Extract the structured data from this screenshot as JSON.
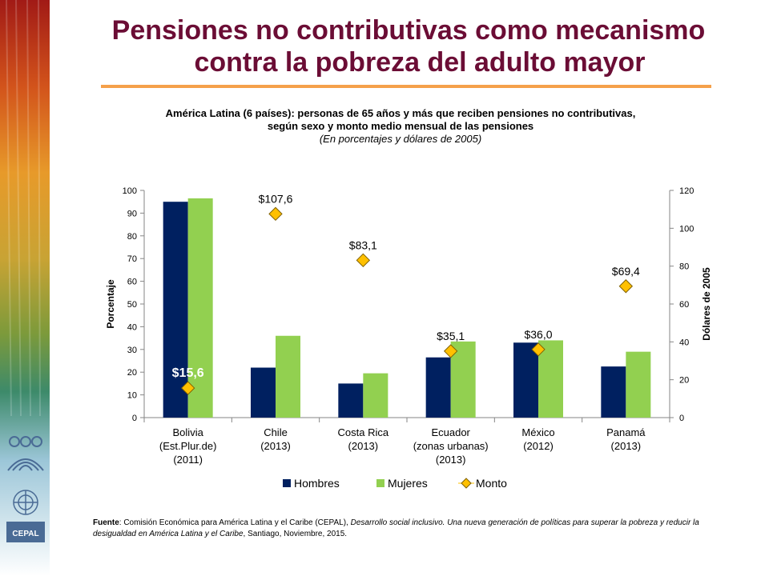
{
  "title_line1": "Pensiones no contributivas como mecanismo",
  "title_line2": "contra la pobreza del adulto mayor",
  "subtitle_line1": "América Latina (6 países): personas de 65 años y más que reciben pensiones no contributivas,",
  "subtitle_line2": "según sexo y monto medio mensual de las pensiones",
  "subtitle_line3": "(En porcentajes y dólares de 2005)",
  "source": {
    "label": "Fuente",
    "text_a": ": Comisión Económica para América Latina y el Caribe (CEPAL), ",
    "italic": "Desarrollo social inclusivo. Una nueva generación de políticas para superar la pobreza y reducir la desigualdad en América Latina y el Caribe",
    "text_b": ", Santiago, Noviembre, 2015."
  },
  "colors": {
    "hombres": "#002060",
    "mujeres": "#92d050",
    "monto": "#ffc000",
    "title": "#6b0d35",
    "rule": "#f5a04a"
  },
  "chart_data": {
    "type": "bar",
    "categories": [
      [
        "Bolivia",
        "(Est.Plur.de)",
        "(2011)"
      ],
      [
        "Chile",
        "(2013)"
      ],
      [
        "Costa Rica",
        "(2013)"
      ],
      [
        "Ecuador",
        "(zonas urbanas)",
        "(2013)"
      ],
      [
        "México",
        "(2012)"
      ],
      [
        "Panamá",
        "(2013)"
      ]
    ],
    "series": [
      {
        "name": "Hombres",
        "axis": "left",
        "values": [
          95,
          22,
          15,
          26.5,
          33,
          22.5
        ]
      },
      {
        "name": "Mujeres",
        "axis": "left",
        "values": [
          96.5,
          36,
          19.5,
          33.5,
          34,
          29
        ]
      }
    ],
    "line_series": {
      "name": "Monto",
      "axis": "right",
      "marker": "diamond",
      "values": [
        15.6,
        107.6,
        83.1,
        35.1,
        36.0,
        69.4
      ],
      "labels": [
        "$15,6",
        "$107,6",
        "$83,1",
        "$35,1",
        "$36,0",
        "$69,4"
      ]
    },
    "ylabel": "Porcentaje",
    "y2label": "Dólares  de 2005",
    "ylim": [
      0,
      100
    ],
    "y2lim": [
      0,
      120
    ],
    "yticks": [
      0,
      10,
      20,
      30,
      40,
      50,
      60,
      70,
      80,
      90,
      100
    ],
    "y2ticks": [
      0,
      20,
      40,
      60,
      80,
      100,
      120
    ],
    "legend": [
      "Hombres",
      "Mujeres",
      "Monto"
    ],
    "legend_position": "bottom",
    "grid": false
  }
}
